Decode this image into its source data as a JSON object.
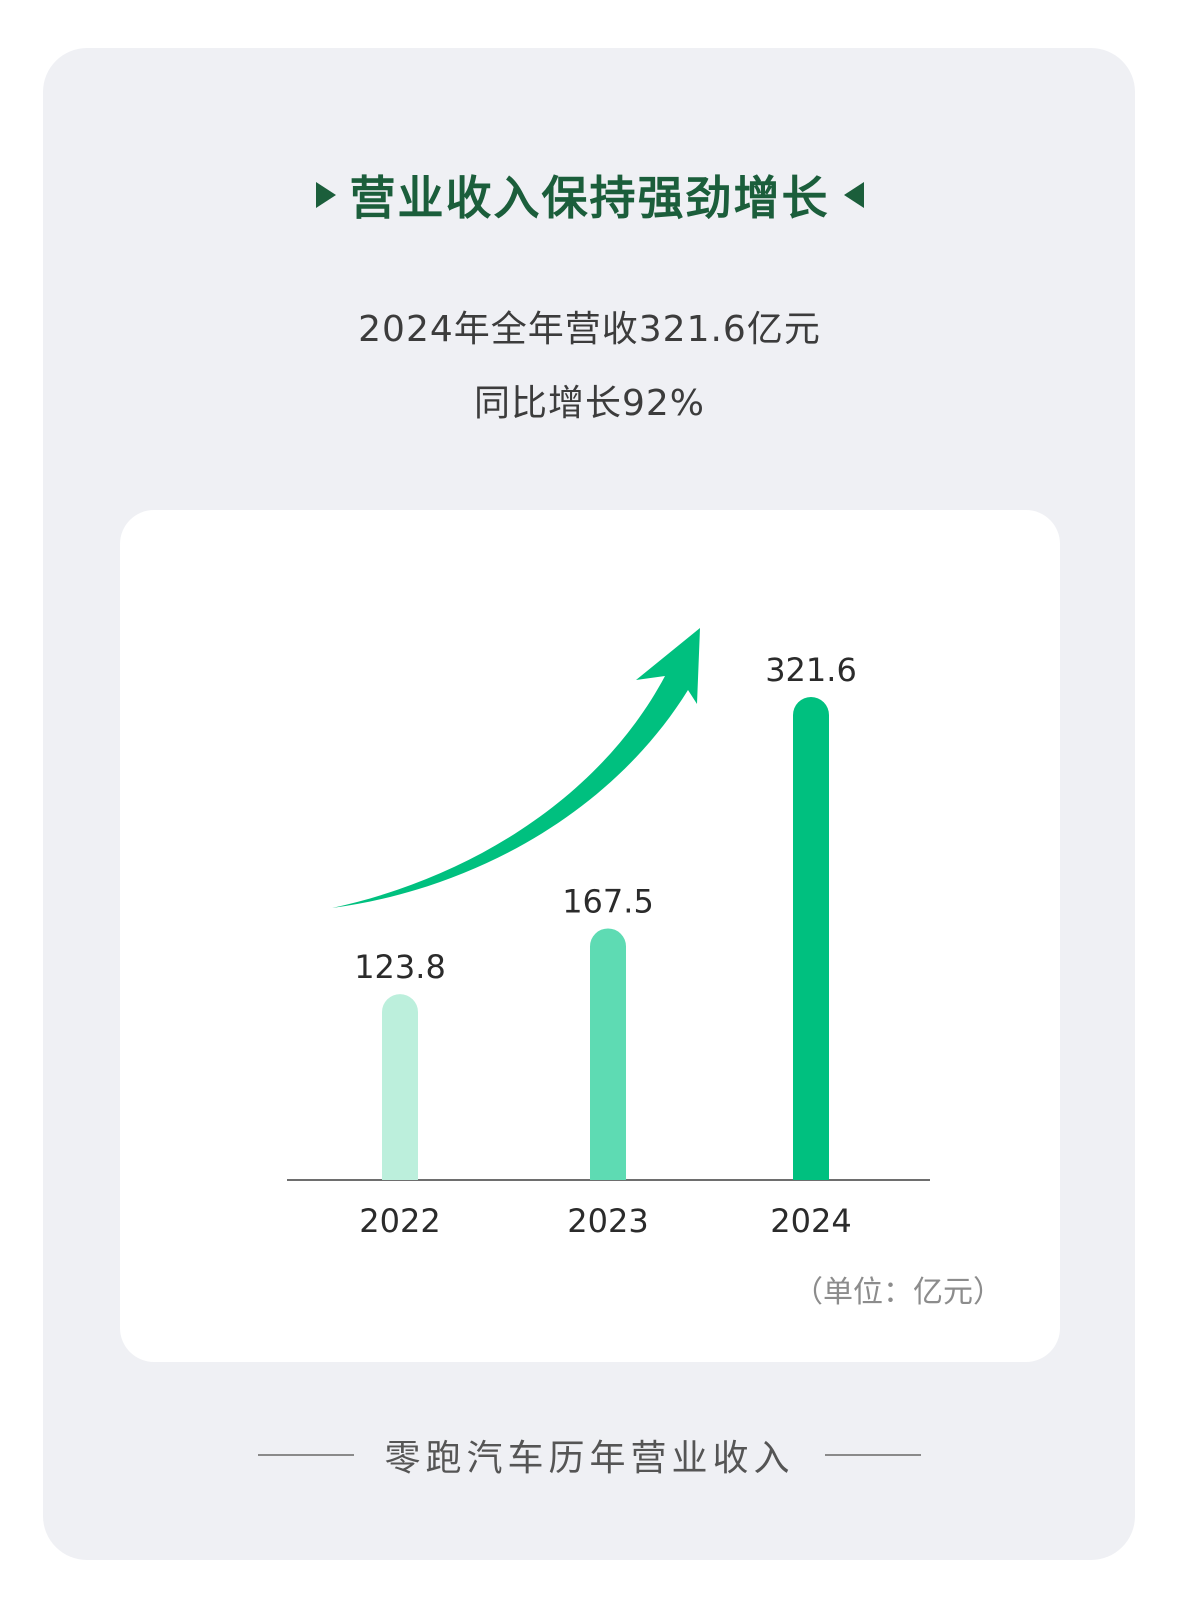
{
  "header": {
    "title": "营业收入保持强劲增长",
    "summary_line1": "2024年全年营收321.6亿元",
    "summary_line2": "同比增长92%"
  },
  "caption": "零跑汽车历年营业收入",
  "colors": {
    "title": "#1b5e3b",
    "bar_2022": "#bcefdc",
    "bar_2023": "#5edbb3",
    "bar_2024": "#00c07f",
    "arrow": "#00c07f"
  },
  "chart_data": {
    "type": "bar",
    "categories": [
      "2022",
      "2023",
      "2024"
    ],
    "values": [
      123.8,
      167.5,
      321.6
    ],
    "value_labels": [
      "123.8",
      "167.5",
      "321.6"
    ],
    "unit_label": "（单位：亿元）",
    "grid": false
  }
}
